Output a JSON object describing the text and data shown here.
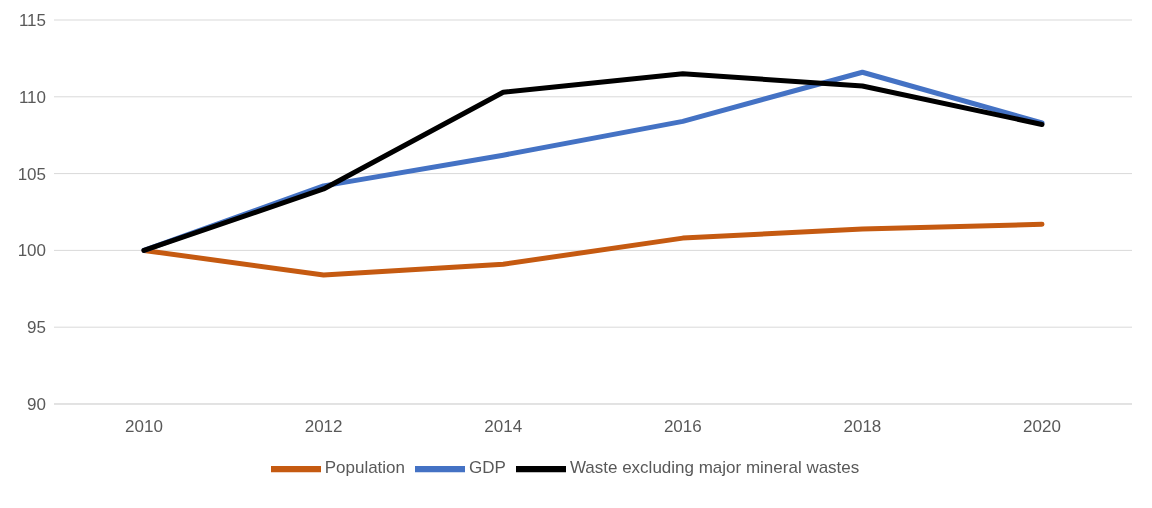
{
  "chart_data": {
    "type": "line",
    "categories": [
      "2010",
      "2012",
      "2014",
      "2016",
      "2018",
      "2020"
    ],
    "series": [
      {
        "name": "Population",
        "color": "#c55a11",
        "values": [
          100,
          98.4,
          99.1,
          100.8,
          101.4,
          101.7
        ]
      },
      {
        "name": "GDP",
        "color": "#4472c4",
        "values": [
          100,
          104.2,
          106.2,
          108.4,
          111.6,
          108.3
        ]
      },
      {
        "name": "Waste excluding major mineral wastes",
        "color": "#000000",
        "values": [
          100,
          104.0,
          110.3,
          111.5,
          110.7,
          108.2
        ]
      }
    ],
    "ylim": [
      90,
      115
    ],
    "yticks": [
      90,
      95,
      100,
      105,
      110,
      115
    ],
    "grid": "y",
    "legend": "bottom",
    "marker": "none",
    "line_style": "solid"
  }
}
